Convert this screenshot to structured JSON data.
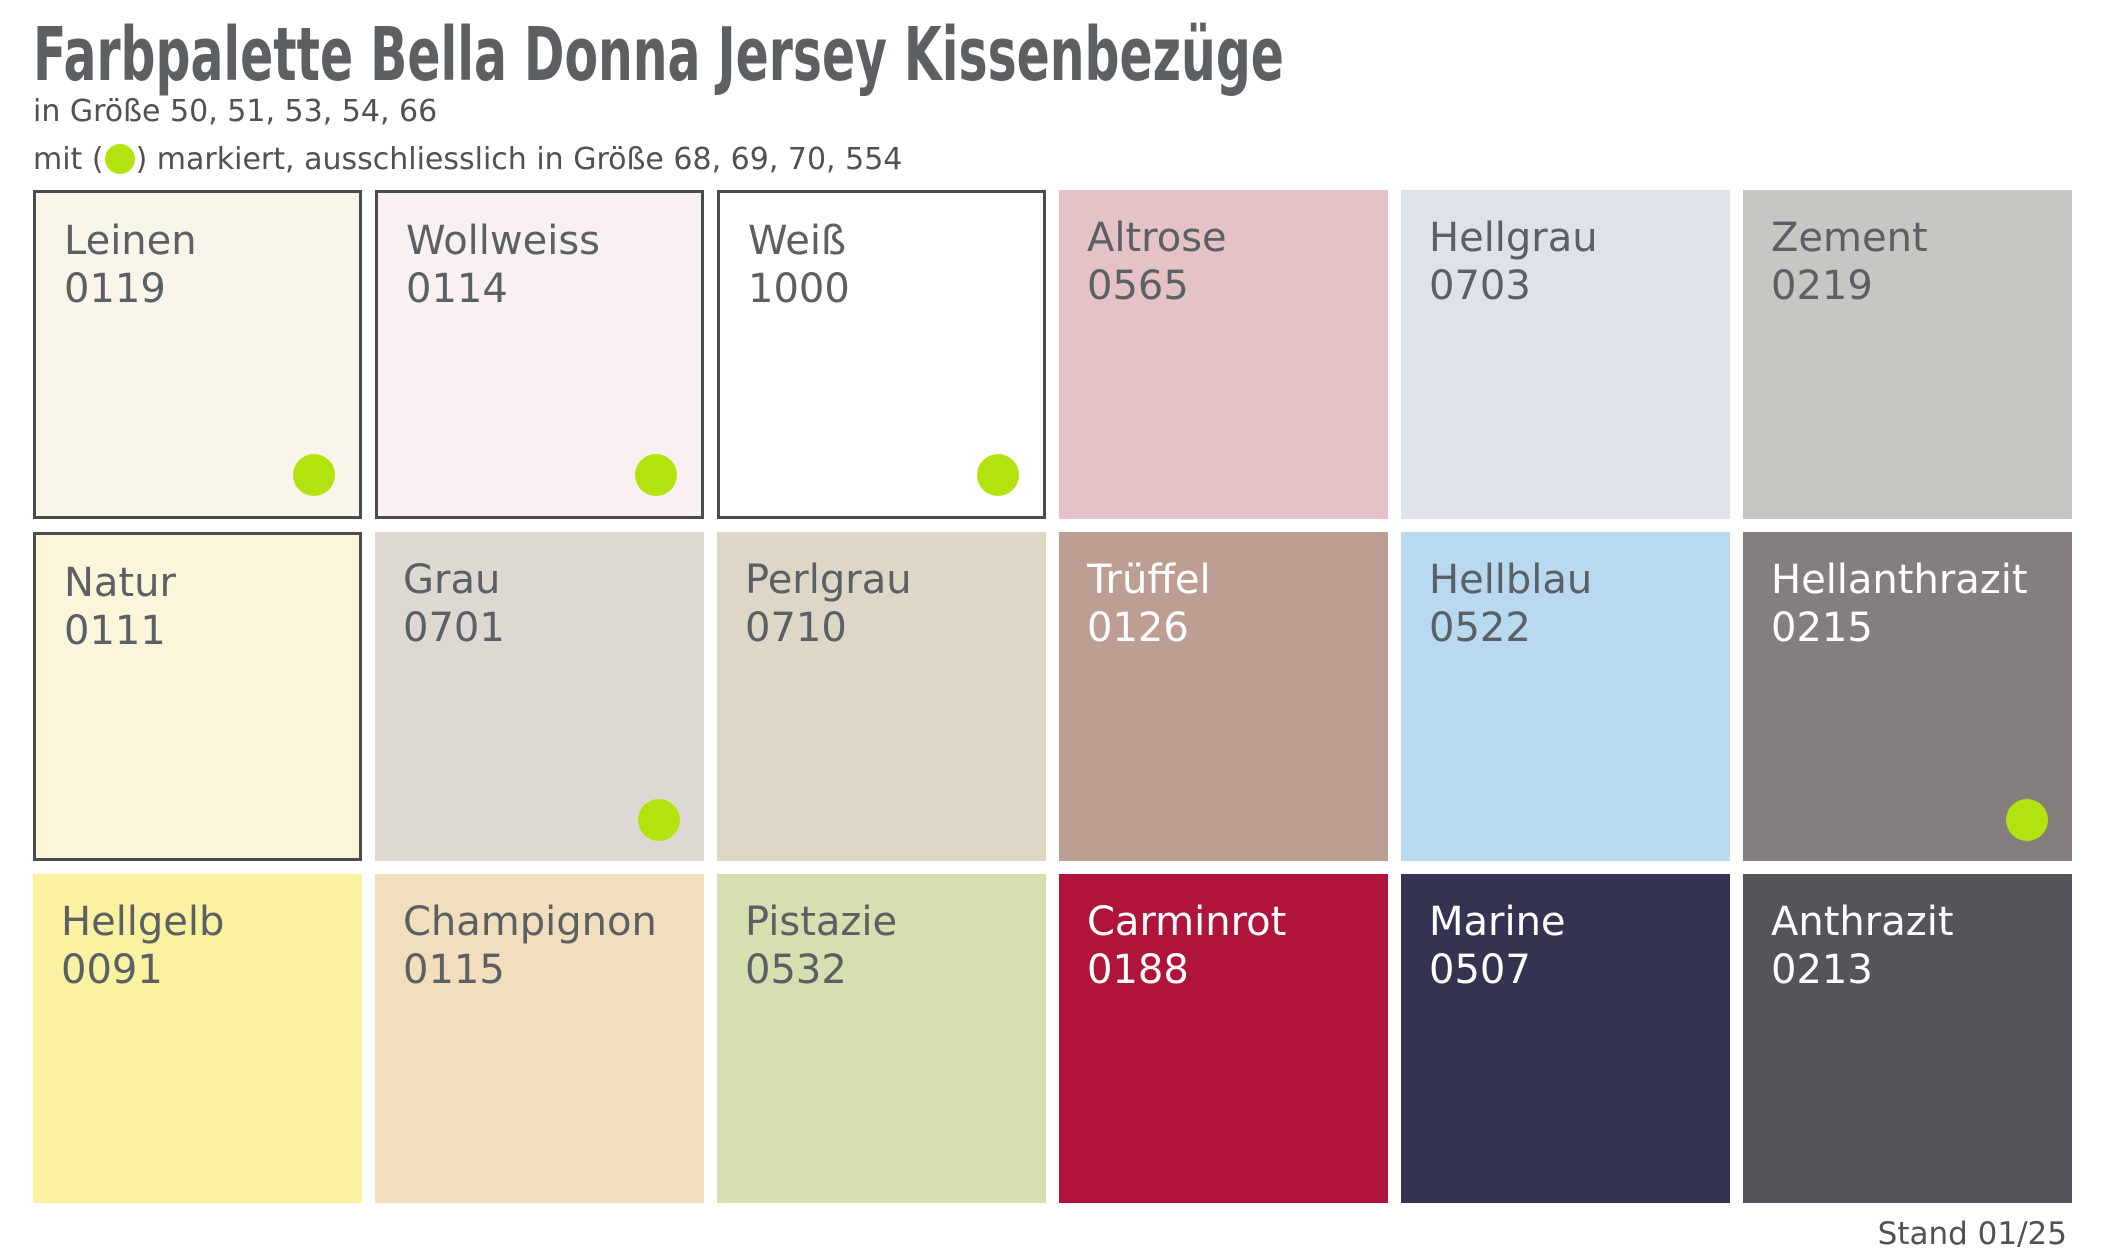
{
  "document": {
    "title": "Farbpalette Bella Donna Jersey Kissenbezüge",
    "subtitle": "in Größe 50, 51, 53, 54, 66",
    "legend": {
      "prefix": "mit (",
      "suffix": ") markiert, ausschliesslich in Größe 68, 69, 70, 554"
    },
    "footer_note": "Stand 01/25"
  },
  "theme": {
    "page_background": "#ffffff",
    "title_color": "#5c6063",
    "body_text_color": "#4d5256",
    "label_dark_color": "#5b6064",
    "label_light_color": "#ffffff",
    "swatch_border_color": "#4a4d50",
    "marker_color": "#b3e30f"
  },
  "swatches": [
    {
      "name": "Leinen",
      "code": "0119",
      "bg": "#f9f5ea",
      "text": "dark",
      "bordered": true,
      "marker": true
    },
    {
      "name": "Wollweiss",
      "code": "0114",
      "bg": "#f9f1f1",
      "text": "dark",
      "bordered": true,
      "marker": true
    },
    {
      "name": "Weiß",
      "code": "1000",
      "bg": "#ffffff",
      "text": "dark",
      "bordered": true,
      "marker": true
    },
    {
      "name": "Altrose",
      "code": "0565",
      "bg": "#e5c2c5",
      "text": "dark",
      "bordered": false,
      "marker": false
    },
    {
      "name": "Hellgrau",
      "code": "0703",
      "bg": "#dee2e9",
      "text": "dark",
      "bordered": false,
      "marker": false
    },
    {
      "name": "Zement",
      "code": "0219",
      "bg": "#c7c6c2",
      "text": "dark",
      "bordered": false,
      "marker": false
    },
    {
      "name": "Natur",
      "code": "0111",
      "bg": "#fbf5da",
      "text": "dark",
      "bordered": true,
      "marker": false
    },
    {
      "name": "Grau",
      "code": "0701",
      "bg": "#ded8d3",
      "text": "dark",
      "bordered": false,
      "marker": true
    },
    {
      "name": "Perlgrau",
      "code": "0710",
      "bg": "#ded6c7",
      "text": "dark",
      "bordered": false,
      "marker": false
    },
    {
      "name": "Trüffel",
      "code": "0126",
      "bg": "#bd9e92",
      "text": "light",
      "bordered": false,
      "marker": false
    },
    {
      "name": "Hellblau",
      "code": "0522",
      "bg": "#b9d9f1",
      "text": "dark",
      "bordered": false,
      "marker": false
    },
    {
      "name": "Hellanthrazit",
      "code": "0215",
      "bg": "#847e7e",
      "text": "light",
      "bordered": false,
      "marker": true
    },
    {
      "name": "Hellgelb",
      "code": "0091",
      "bg": "#fbf2a1",
      "text": "dark",
      "bordered": false,
      "marker": false
    },
    {
      "name": "Champignon",
      "code": "0115",
      "bg": "#f2debd",
      "text": "dark",
      "bordered": false,
      "marker": false
    },
    {
      "name": "Pistazie",
      "code": "0532",
      "bg": "#d5dfb0",
      "text": "dark",
      "bordered": false,
      "marker": false
    },
    {
      "name": "Carminrot",
      "code": "0188",
      "bg": "#b0143a",
      "text": "light",
      "bordered": false,
      "marker": false
    },
    {
      "name": "Marine",
      "code": "0507",
      "bg": "#343452",
      "text": "light",
      "bordered": false,
      "marker": false
    },
    {
      "name": "Anthrazit",
      "code": "0213",
      "bg": "#57535b",
      "text": "light",
      "bordered": false,
      "marker": false
    }
  ]
}
